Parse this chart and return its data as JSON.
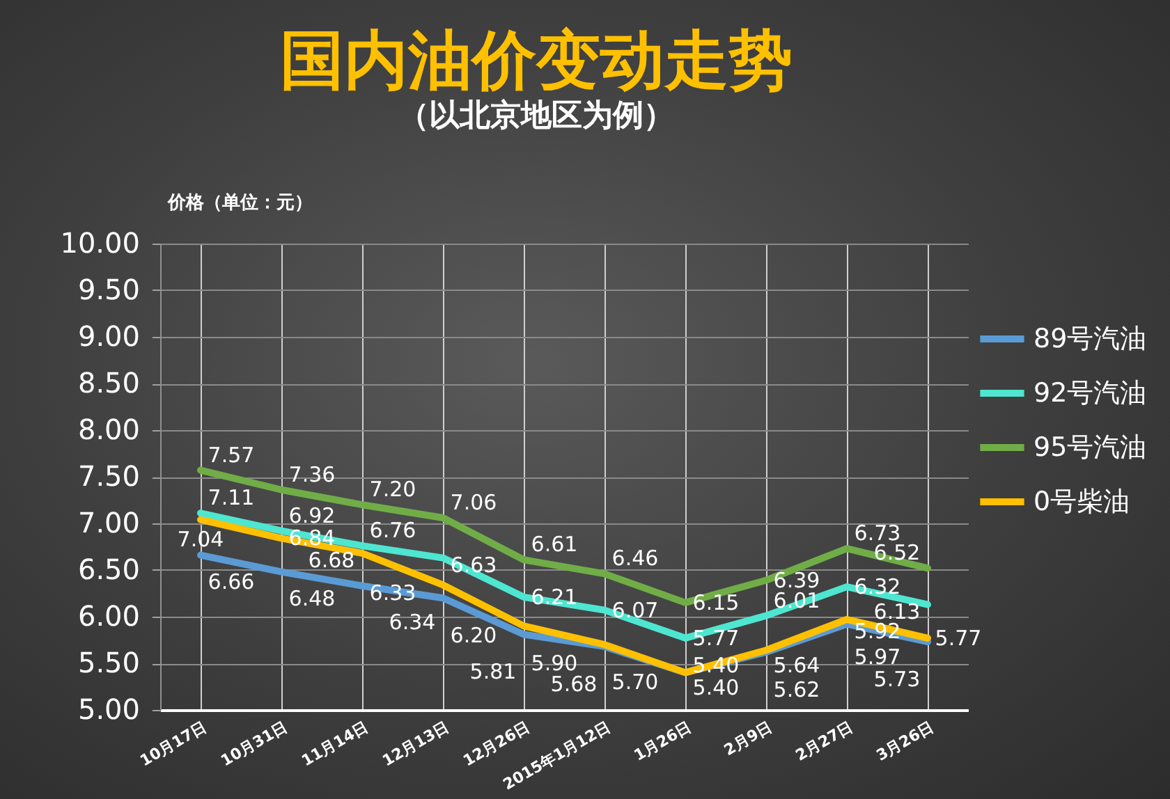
{
  "chart_data": {
    "type": "line",
    "title": "国内油价变动走势",
    "subtitle": "（以北京地区为例）",
    "ylabel": "价格（单位：元）",
    "categories": [
      "10月17日",
      "10月31日",
      "11月14日",
      "12月13日",
      "12月26日",
      "2015年1月12日",
      "1月26日",
      "2月9日",
      "2月27日",
      "3月26日"
    ],
    "series": [
      {
        "name": "89号汽油",
        "color": "#5b9bd5",
        "values": [
          6.66,
          6.48,
          6.33,
          6.2,
          5.81,
          5.68,
          5.4,
          5.62,
          5.92,
          5.73
        ],
        "value_labels": [
          "6.66",
          "6.48",
          "6.33",
          "6.20",
          "5.81",
          "5.68",
          "5.40",
          "5.62",
          "5.92",
          "5.73"
        ]
      },
      {
        "name": "92号汽油",
        "color": "#4ee6d0",
        "values": [
          7.11,
          6.92,
          6.76,
          6.63,
          6.21,
          6.07,
          5.77,
          6.01,
          6.32,
          6.13
        ],
        "value_labels": [
          "7.11",
          "6.92",
          "6.76",
          "6.63",
          "6.21",
          "6.07",
          "5.77",
          "6.01",
          "6.32",
          "6.13"
        ]
      },
      {
        "name": "95号汽油",
        "color": "#70ad47",
        "values": [
          7.57,
          7.36,
          7.2,
          7.06,
          6.61,
          6.46,
          6.15,
          6.39,
          6.73,
          6.52
        ],
        "value_labels": [
          "7.57",
          "7.36",
          "7.20",
          "7.06",
          "6.61",
          "6.46",
          "6.15",
          "6.39",
          "6.73",
          "6.52"
        ]
      },
      {
        "name": "0号柴油",
        "color": "#ffc000",
        "values": [
          7.04,
          6.84,
          6.68,
          6.34,
          5.9,
          5.7,
          5.4,
          5.64,
          5.97,
          5.77
        ],
        "value_labels": [
          "7.04",
          "6.84",
          "6.68",
          "6.34",
          "5.90",
          "5.70",
          "5.40",
          "5.64",
          "5.97",
          "5.77"
        ]
      }
    ],
    "ylim": [
      5,
      10
    ],
    "yticks": [
      {
        "value": 5,
        "label": "5.00"
      },
      {
        "value": 5.5,
        "label": "5.50"
      },
      {
        "value": 6,
        "label": "6.00"
      },
      {
        "value": 6.5,
        "label": "6.50"
      },
      {
        "value": 7,
        "label": "7.00"
      },
      {
        "value": 7.5,
        "label": "7.50"
      },
      {
        "value": 8,
        "label": "8.00"
      },
      {
        "value": 8.5,
        "label": "8.50"
      },
      {
        "value": 9,
        "label": "9.00"
      },
      {
        "value": 9.5,
        "label": "9.50"
      },
      {
        "value": 10,
        "label": "10.00"
      }
    ],
    "grid": true,
    "legend": "right"
  }
}
